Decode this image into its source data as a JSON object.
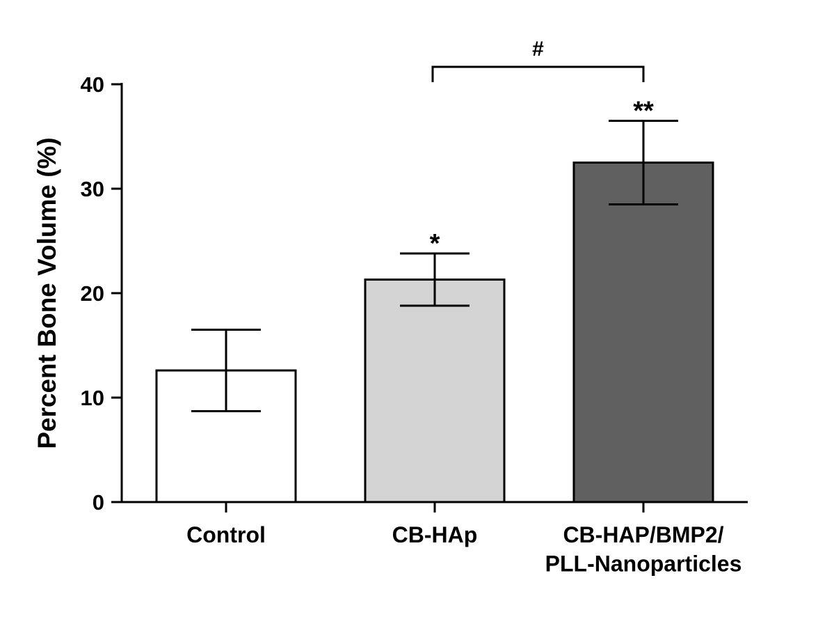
{
  "chart_data": {
    "type": "bar",
    "ylabel": "Percent Bone Volume (%)",
    "categories": [
      "Control",
      "CB-HAp",
      "CB-HAP/BMP2/\nPLL-Nanoparticles"
    ],
    "values": [
      12.6,
      21.3,
      32.5
    ],
    "errors": [
      3.9,
      2.5,
      4.0
    ],
    "colors": [
      "#ffffff",
      "#d4d4d4",
      "#606060"
    ],
    "value_annotations": [
      null,
      "*",
      "**"
    ],
    "bracket_label": "#",
    "ylim": [
      0,
      40
    ],
    "yticks": [
      0,
      10,
      20,
      30,
      40
    ],
    "grid": false
  }
}
